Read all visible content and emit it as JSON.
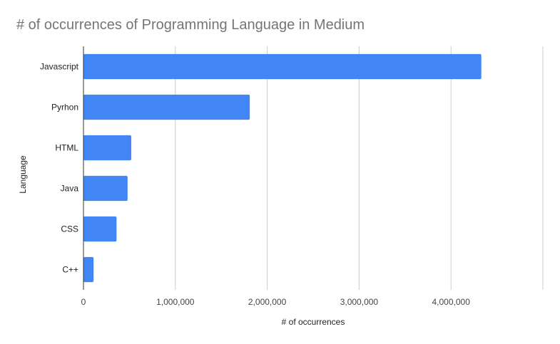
{
  "chart_data": {
    "type": "bar",
    "orientation": "horizontal",
    "title": "# of occurrences of Programming Language in Medium",
    "xlabel": "# of occurrences",
    "ylabel": "Language",
    "categories": [
      "Javascript",
      "Pyrhon",
      "HTML",
      "Java",
      "CSS",
      "C++"
    ],
    "values": [
      4330000,
      1810000,
      520000,
      480000,
      360000,
      110000
    ],
    "xlim": [
      0,
      5000000
    ],
    "xticks": [
      0,
      1000000,
      2000000,
      3000000,
      4000000
    ],
    "xtick_labels": [
      "0",
      "1,000,000",
      "2,000,000",
      "3,000,000",
      "4,000,000"
    ],
    "grid": true,
    "legend": "none",
    "bar_color": "#4285f4"
  }
}
